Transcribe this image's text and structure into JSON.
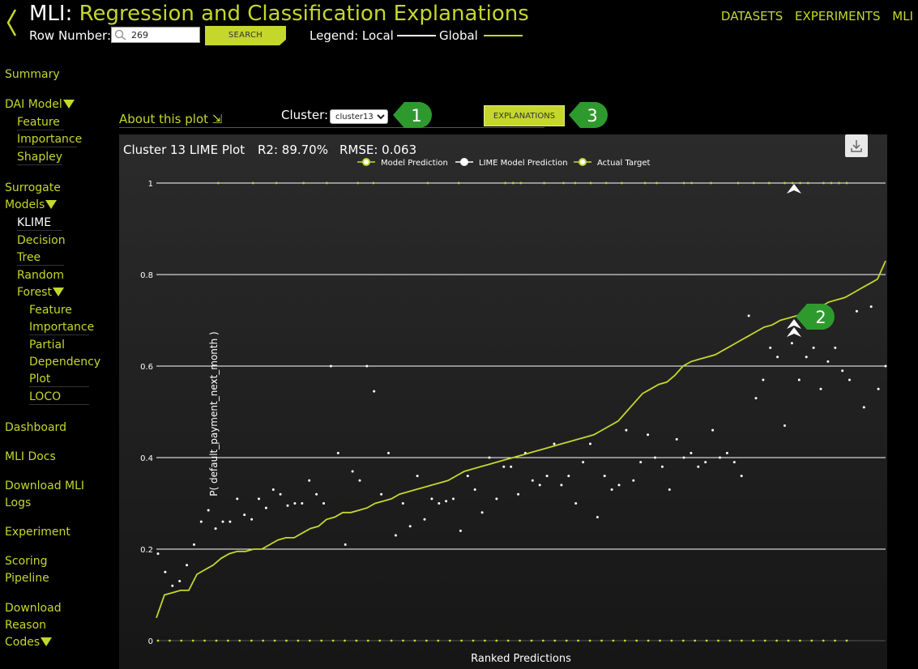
{
  "header": {
    "title_prefix": "MLI:",
    "title_main": "Regression and Classification Explanations",
    "row_number_label": "Row Number:",
    "row_number_value": "269",
    "search_label": "SEARCH",
    "legend_label": "Legend: Local",
    "legend_global": "Global"
  },
  "topnav": {
    "datasets": "DATASETS",
    "experiments": "EXPERIMENTS",
    "mli": "MLI"
  },
  "sidebar": {
    "summary": "Summary",
    "dai_model": "DAI Model",
    "feature": "Feature",
    "importance": "Importance",
    "shapley": "Shapley",
    "surrogate": "Surrogate",
    "models": "Models",
    "klime": "KLIME",
    "decision": "Decision",
    "tree": "Tree",
    "random": "Random",
    "forest": "Forest",
    "rf_feature": "Feature",
    "rf_importance": "Importance",
    "partial": "Partial",
    "dependency": "Dependency",
    "plot": "Plot",
    "loco": "LOCO",
    "dashboard": "Dashboard",
    "mli_docs": "MLI Docs",
    "download_mli": "Download MLI",
    "logs": "Logs",
    "experiment": "Experiment",
    "scoring": "Scoring",
    "pipeline": "Pipeline",
    "download": "Download",
    "reason": "Reason",
    "codes": "Codes"
  },
  "controls": {
    "about_plot": "About this plot ⇲",
    "cluster_label": "Cluster:",
    "cluster_value": "cluster13",
    "explanations_label": "EXPLANATIONS",
    "marker1": "1",
    "marker2": "2",
    "marker3": "3"
  },
  "colors": {
    "accent": "#c5d72c",
    "marker_green": "#2e9a2e",
    "background": "#000000"
  },
  "icons": {
    "back": "chevron-left-icon",
    "search": "search-icon",
    "download": "download-icon"
  },
  "chart": {
    "title": "Cluster 13 LIME Plot",
    "r2": "R2: 89.70%",
    "rmse": "RMSE: 0.063",
    "legend_model": "Model Prediction",
    "legend_lime": "LIME Model Prediction",
    "legend_actual": "Actual Target"
  },
  "chart_data": {
    "type": "line",
    "xlabel": "Ranked Predictions",
    "ylabel": "P( default_payment_next_month )",
    "ylim": [
      0,
      1
    ],
    "yticks": [
      "0",
      "0.2",
      "0.4",
      "0.6",
      "0.8",
      "1"
    ],
    "grid": true,
    "legend": "top-center",
    "series": [
      {
        "name": "Model Prediction",
        "kind": "line",
        "color": "#c5d72c",
        "values": [
          0.05,
          0.1,
          0.105,
          0.11,
          0.11,
          0.145,
          0.155,
          0.165,
          0.18,
          0.19,
          0.195,
          0.195,
          0.2,
          0.2,
          0.21,
          0.22,
          0.225,
          0.225,
          0.235,
          0.245,
          0.25,
          0.265,
          0.27,
          0.28,
          0.28,
          0.285,
          0.29,
          0.3,
          0.305,
          0.31,
          0.32,
          0.325,
          0.33,
          0.335,
          0.34,
          0.345,
          0.35,
          0.36,
          0.37,
          0.375,
          0.38,
          0.385,
          0.39,
          0.395,
          0.4,
          0.405,
          0.41,
          0.415,
          0.42,
          0.425,
          0.43,
          0.435,
          0.44,
          0.445,
          0.45,
          0.46,
          0.47,
          0.48,
          0.5,
          0.52,
          0.54,
          0.55,
          0.56,
          0.565,
          0.58,
          0.6,
          0.61,
          0.615,
          0.62,
          0.625,
          0.635,
          0.645,
          0.655,
          0.665,
          0.675,
          0.685,
          0.69,
          0.7,
          0.705,
          0.71,
          0.715,
          0.72,
          0.73,
          0.74,
          0.745,
          0.75,
          0.76,
          0.77,
          0.78,
          0.79,
          0.83
        ]
      },
      {
        "name": "LIME Model Prediction",
        "kind": "scatter",
        "color": "#ffffff",
        "values": [
          0.19,
          0.15,
          0.12,
          0.13,
          0.165,
          0.21,
          0.26,
          0.285,
          0.245,
          0.26,
          0.26,
          0.31,
          0.275,
          0.265,
          0.31,
          0.29,
          0.33,
          0.32,
          0.295,
          0.3,
          0.3,
          0.35,
          0.32,
          0.3,
          0.6,
          0.41,
          0.21,
          0.37,
          0.35,
          0.6,
          0.545,
          0.32,
          0.41,
          0.23,
          0.3,
          0.25,
          0.36,
          0.265,
          0.31,
          0.3,
          0.305,
          0.31,
          0.24,
          0.36,
          0.33,
          0.28,
          0.4,
          0.31,
          0.38,
          0.38,
          0.32,
          0.41,
          0.35,
          0.34,
          0.36,
          0.43,
          0.34,
          0.36,
          0.3,
          0.39,
          0.43,
          0.27,
          0.36,
          0.33,
          0.34,
          0.46,
          0.35,
          0.39,
          0.45,
          0.4,
          0.38,
          0.33,
          0.44,
          0.4,
          0.41,
          0.38,
          0.39,
          0.46,
          0.4,
          0.41,
          0.39,
          0.36,
          0.71,
          0.53,
          0.57,
          0.64,
          0.62,
          0.47,
          0.65,
          0.57,
          0.62,
          0.64,
          0.55,
          0.61,
          0.64,
          0.59,
          0.57,
          0.72,
          0.51,
          0.73,
          0.55,
          0.6
        ]
      },
      {
        "name": "Actual Target",
        "kind": "points",
        "color": "#c5d72c",
        "ones": [
          8,
          17,
          23,
          30,
          36,
          44,
          48,
          62,
          70,
          82,
          84,
          86,
          92,
          97,
          100,
          104,
          108,
          112,
          118,
          121,
          128,
          130,
          135,
          142,
          146,
          150,
          154,
          156,
          158,
          160,
          164,
          166,
          168,
          170
        ],
        "zeros_count": 60
      }
    ]
  }
}
